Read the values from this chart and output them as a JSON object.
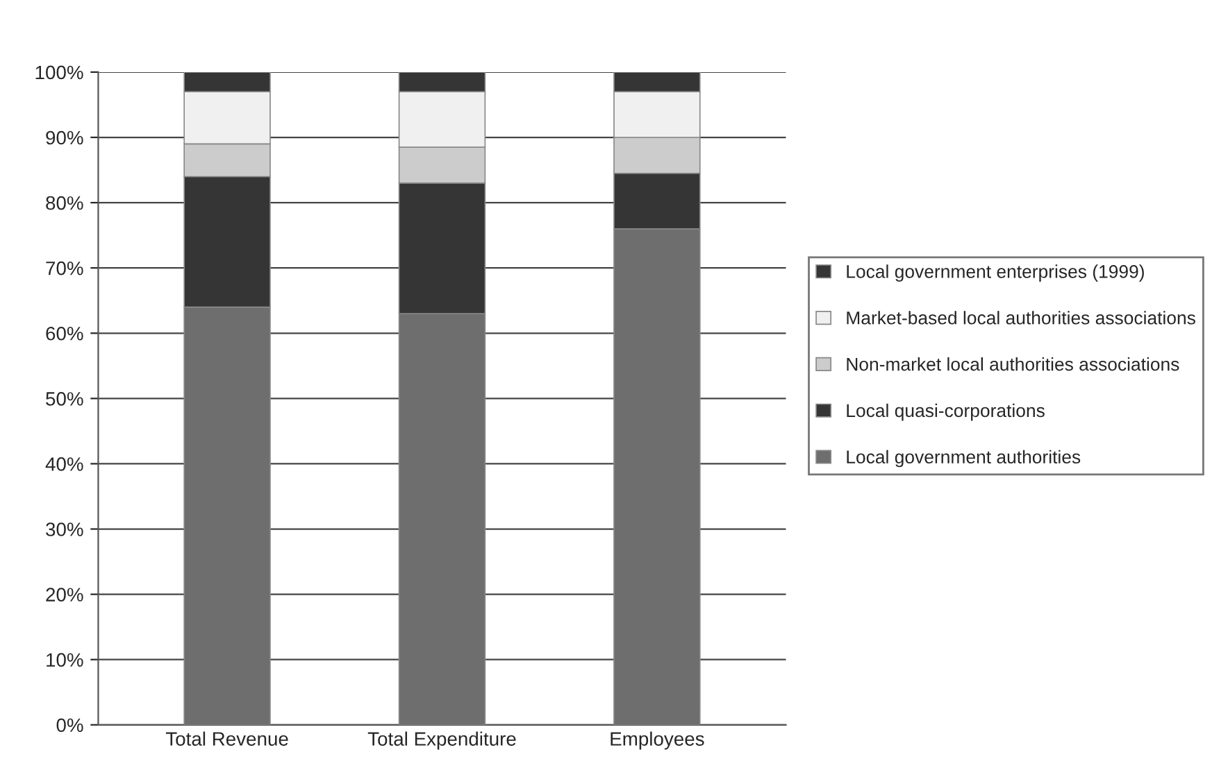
{
  "chart_data": {
    "type": "bar",
    "stacked": true,
    "categories": [
      "Total Revenue",
      "Total Expenditure",
      "Employees"
    ],
    "series": [
      {
        "name": "Local government authorities",
        "color": "#6e6e6e",
        "values": [
          64,
          63,
          76
        ]
      },
      {
        "name": "Local quasi-corporations",
        "color": "#353535",
        "values": [
          20,
          20,
          8.5
        ]
      },
      {
        "name": "Non-market local authorities associations",
        "color": "#cccccc",
        "values": [
          5,
          5.5,
          5.5
        ]
      },
      {
        "name": "Market-based local authorities associations",
        "color": "#f0f0f0",
        "values": [
          8,
          8.5,
          7
        ]
      },
      {
        "name": "Local government enterprises (1999)",
        "color": "#353535",
        "values": [
          3,
          3,
          3
        ]
      }
    ],
    "ylim": [
      0,
      100
    ],
    "yticks": [
      {
        "value": 0,
        "label": "0%"
      },
      {
        "value": 10,
        "label": "10%"
      },
      {
        "value": 20,
        "label": "20%"
      },
      {
        "value": 30,
        "label": "30%"
      },
      {
        "value": 40,
        "label": "40%"
      },
      {
        "value": 50,
        "label": "50%"
      },
      {
        "value": 60,
        "label": "60%"
      },
      {
        "value": 70,
        "label": "70%"
      },
      {
        "value": 80,
        "label": "80%"
      },
      {
        "value": 90,
        "label": "90%"
      },
      {
        "value": 100,
        "label": "100%"
      }
    ],
    "grid": "y",
    "legend": "right"
  }
}
